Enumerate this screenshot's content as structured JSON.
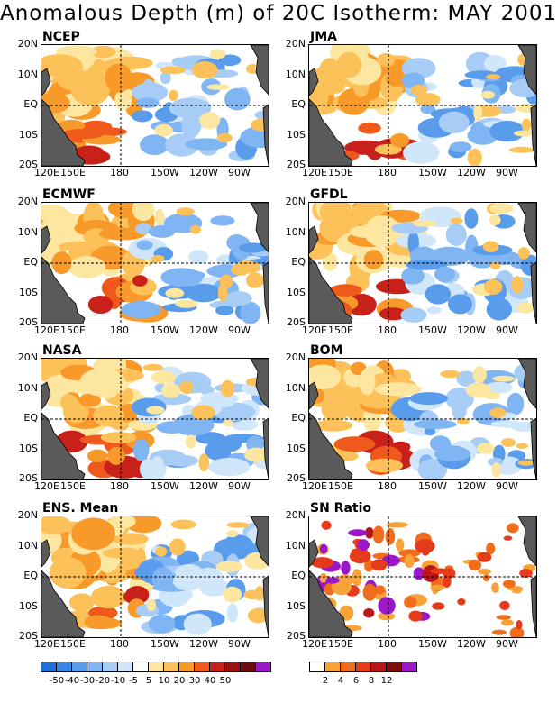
{
  "title": "Anomalous Depth (m) of 20C Isotherm: MAY 2001",
  "y_tick_labels": [
    "20N",
    "10N",
    "EQ",
    "10S",
    "20S"
  ],
  "x_tick_labels": [
    "120E",
    "150E",
    "180",
    "150W",
    "120W",
    "90W"
  ],
  "panels": [
    {
      "name": "NCEP"
    },
    {
      "name": "JMA"
    },
    {
      "name": "ECMWF"
    },
    {
      "name": "GFDL"
    },
    {
      "name": "NASA"
    },
    {
      "name": "BOM"
    },
    {
      "name": "ENS. Mean"
    },
    {
      "name": "SN Ratio"
    }
  ],
  "anomaly_colorbar": {
    "labels": [
      "-50",
      "-40",
      "-30",
      "-20",
      "-10",
      "-5",
      "5",
      "10",
      "20",
      "30",
      "40",
      "50"
    ],
    "colors": [
      "#1f6fd8",
      "#3a86e6",
      "#5a9cec",
      "#7fb5f2",
      "#a7cdf6",
      "#cfe6fb",
      "#ffffff",
      "#fde6a0",
      "#fdc15a",
      "#f89a2a",
      "#ef5a1c",
      "#c8211a",
      "#9a1212",
      "#6c0d0d",
      "#9b17c8"
    ]
  },
  "sn_colorbar": {
    "labels": [
      "2",
      "4",
      "6",
      "8",
      "12"
    ],
    "colors": [
      "#ffffff",
      "#f8a23a",
      "#ef6d1c",
      "#e63b1a",
      "#b8141a",
      "#7e0d0d",
      "#9b17c8"
    ]
  },
  "colors": {
    "land": "#5a5a5a",
    "warm": "#f89a2a",
    "cool": "#7fb5f2"
  }
}
